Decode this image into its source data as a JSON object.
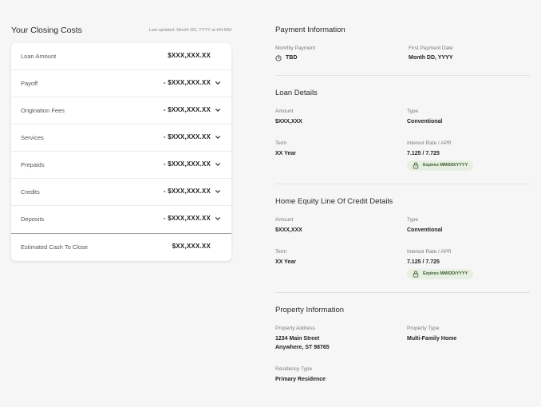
{
  "closing": {
    "title": "Your Closing Costs",
    "updated": "Last updated: Month DD, YYYY at HH:MM",
    "rows": [
      {
        "label": "Loan Amount",
        "value": "$XXX,XXX.XX"
      },
      {
        "label": "Payoff",
        "value": "- $XXX,XXX.XX"
      },
      {
        "label": "Origination Fees",
        "value": "- $XXX,XXX.XX"
      },
      {
        "label": "Services",
        "value": "- $XXX,XXX.XX"
      },
      {
        "label": "Prepaids",
        "value": "- $XXX,XXX.XX"
      },
      {
        "label": "Credits",
        "value": "- $XXX,XXX.XX"
      },
      {
        "label": "Deposits",
        "value": "- $XXX,XXX.XX"
      }
    ],
    "total": {
      "label": "Estimated Cash To Close",
      "value": "$XX,XXX.XX"
    }
  },
  "payment": {
    "title": "Payment Information",
    "monthly_label": "Monthly Payment",
    "monthly_value": "TBD",
    "first_label": "First Payment Date",
    "first_value": "Month DD, YYYY"
  },
  "loan": {
    "title": "Loan Details",
    "amount_label": "Amount",
    "amount_value": "$XXX,XXX",
    "type_label": "Type",
    "type_value": "Conventional",
    "term_label": "Term",
    "term_value": "XX Year",
    "rate_label": "Interest Rate / APR",
    "rate_value": "7.125 / 7.725",
    "badge": "Expires MM/DD/YYYY"
  },
  "heloc": {
    "title": "Home Equity Line Of Credit Details",
    "amount_label": "Amount",
    "amount_value": "$XXX,XXX",
    "type_label": "Type",
    "type_value": "Conventional",
    "term_label": "Term",
    "term_value": "XX Year",
    "rate_label": "Interest Rate / APR",
    "rate_value": "7.125 / 7.725",
    "badge": "Expires MM/DD/YYYY"
  },
  "property": {
    "title": "Property Information",
    "address_label": "Property Address",
    "address_line1": "1234 Main Street",
    "address_line2": "Anywhere, ST 98765",
    "type_label": "Property Type",
    "type_value": "Multi-Family Home",
    "residency_label": "Residency Type",
    "residency_value": "Primary Residence"
  },
  "colors": {
    "badge_bg": "#e7efe3",
    "badge_text": "#355e2b",
    "background": "#f6f6f6"
  }
}
